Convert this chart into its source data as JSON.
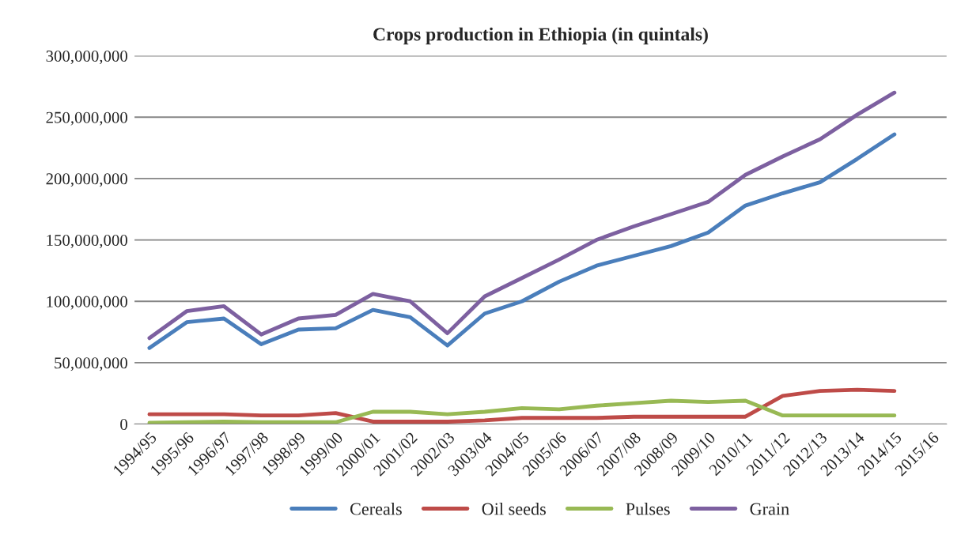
{
  "chart_data": {
    "type": "line",
    "title": "Crops production in Ethiopia (in quintals)",
    "categories": [
      "1994/95",
      "1995/96",
      "1996/97",
      "1997/98",
      "1998/99",
      "1999/00",
      "2000/01",
      "2001/02",
      "2002/03",
      "3003/04",
      "2004/05",
      "2005/06",
      "2006/07",
      "2007/08",
      "2008/09",
      "2009/10",
      "2010/11",
      "2011/12",
      "2012/13",
      "2013/14",
      "2014/15",
      "2015/16"
    ],
    "series": [
      {
        "name": "Cereals",
        "color": "#4a7ebb",
        "values": [
          62000000,
          83000000,
          86000000,
          65000000,
          77000000,
          78000000,
          93000000,
          87000000,
          64000000,
          90000000,
          100000000,
          116000000,
          129000000,
          137000000,
          145000000,
          156000000,
          178000000,
          188000000,
          197000000,
          216000000,
          236000000,
          null
        ]
      },
      {
        "name": "Oil seeds",
        "color": "#be4b48",
        "values": [
          8000000,
          8000000,
          8000000,
          7000000,
          7000000,
          9000000,
          2000000,
          2000000,
          2000000,
          3000000,
          5000000,
          5000000,
          5000000,
          6000000,
          6000000,
          6000000,
          6000000,
          23000000,
          27000000,
          28000000,
          27000000,
          null
        ]
      },
      {
        "name": "Pulses",
        "color": "#98b954",
        "values": [
          1000000,
          1500000,
          2000000,
          1500000,
          1500000,
          1500000,
          10000000,
          10000000,
          8000000,
          10000000,
          13000000,
          12000000,
          15000000,
          17000000,
          19000000,
          18000000,
          19000000,
          7000000,
          7000000,
          7000000,
          7000000,
          null
        ]
      },
      {
        "name": "Grain",
        "color": "#7d60a0",
        "values": [
          70000000,
          92000000,
          96000000,
          73000000,
          86000000,
          89000000,
          106000000,
          100000000,
          74000000,
          104000000,
          119000000,
          134000000,
          150000000,
          161000000,
          171000000,
          181000000,
          203000000,
          218000000,
          232000000,
          252000000,
          270000000,
          null
        ]
      }
    ],
    "ylim": [
      0,
      300000000
    ],
    "yticks": [
      {
        "value": 0,
        "label": "0"
      },
      {
        "value": 50000000,
        "label": "50,000,000"
      },
      {
        "value": 100000000,
        "label": "100,000,000"
      },
      {
        "value": 150000000,
        "label": "150,000,000"
      },
      {
        "value": 200000000,
        "label": "200,000,000"
      },
      {
        "value": 250000000,
        "label": "250,000,000"
      },
      {
        "value": 300000000,
        "label": "300,000,000"
      }
    ],
    "grid": "y",
    "legend": "bottom",
    "marker": "none",
    "line_style": "solid"
  }
}
